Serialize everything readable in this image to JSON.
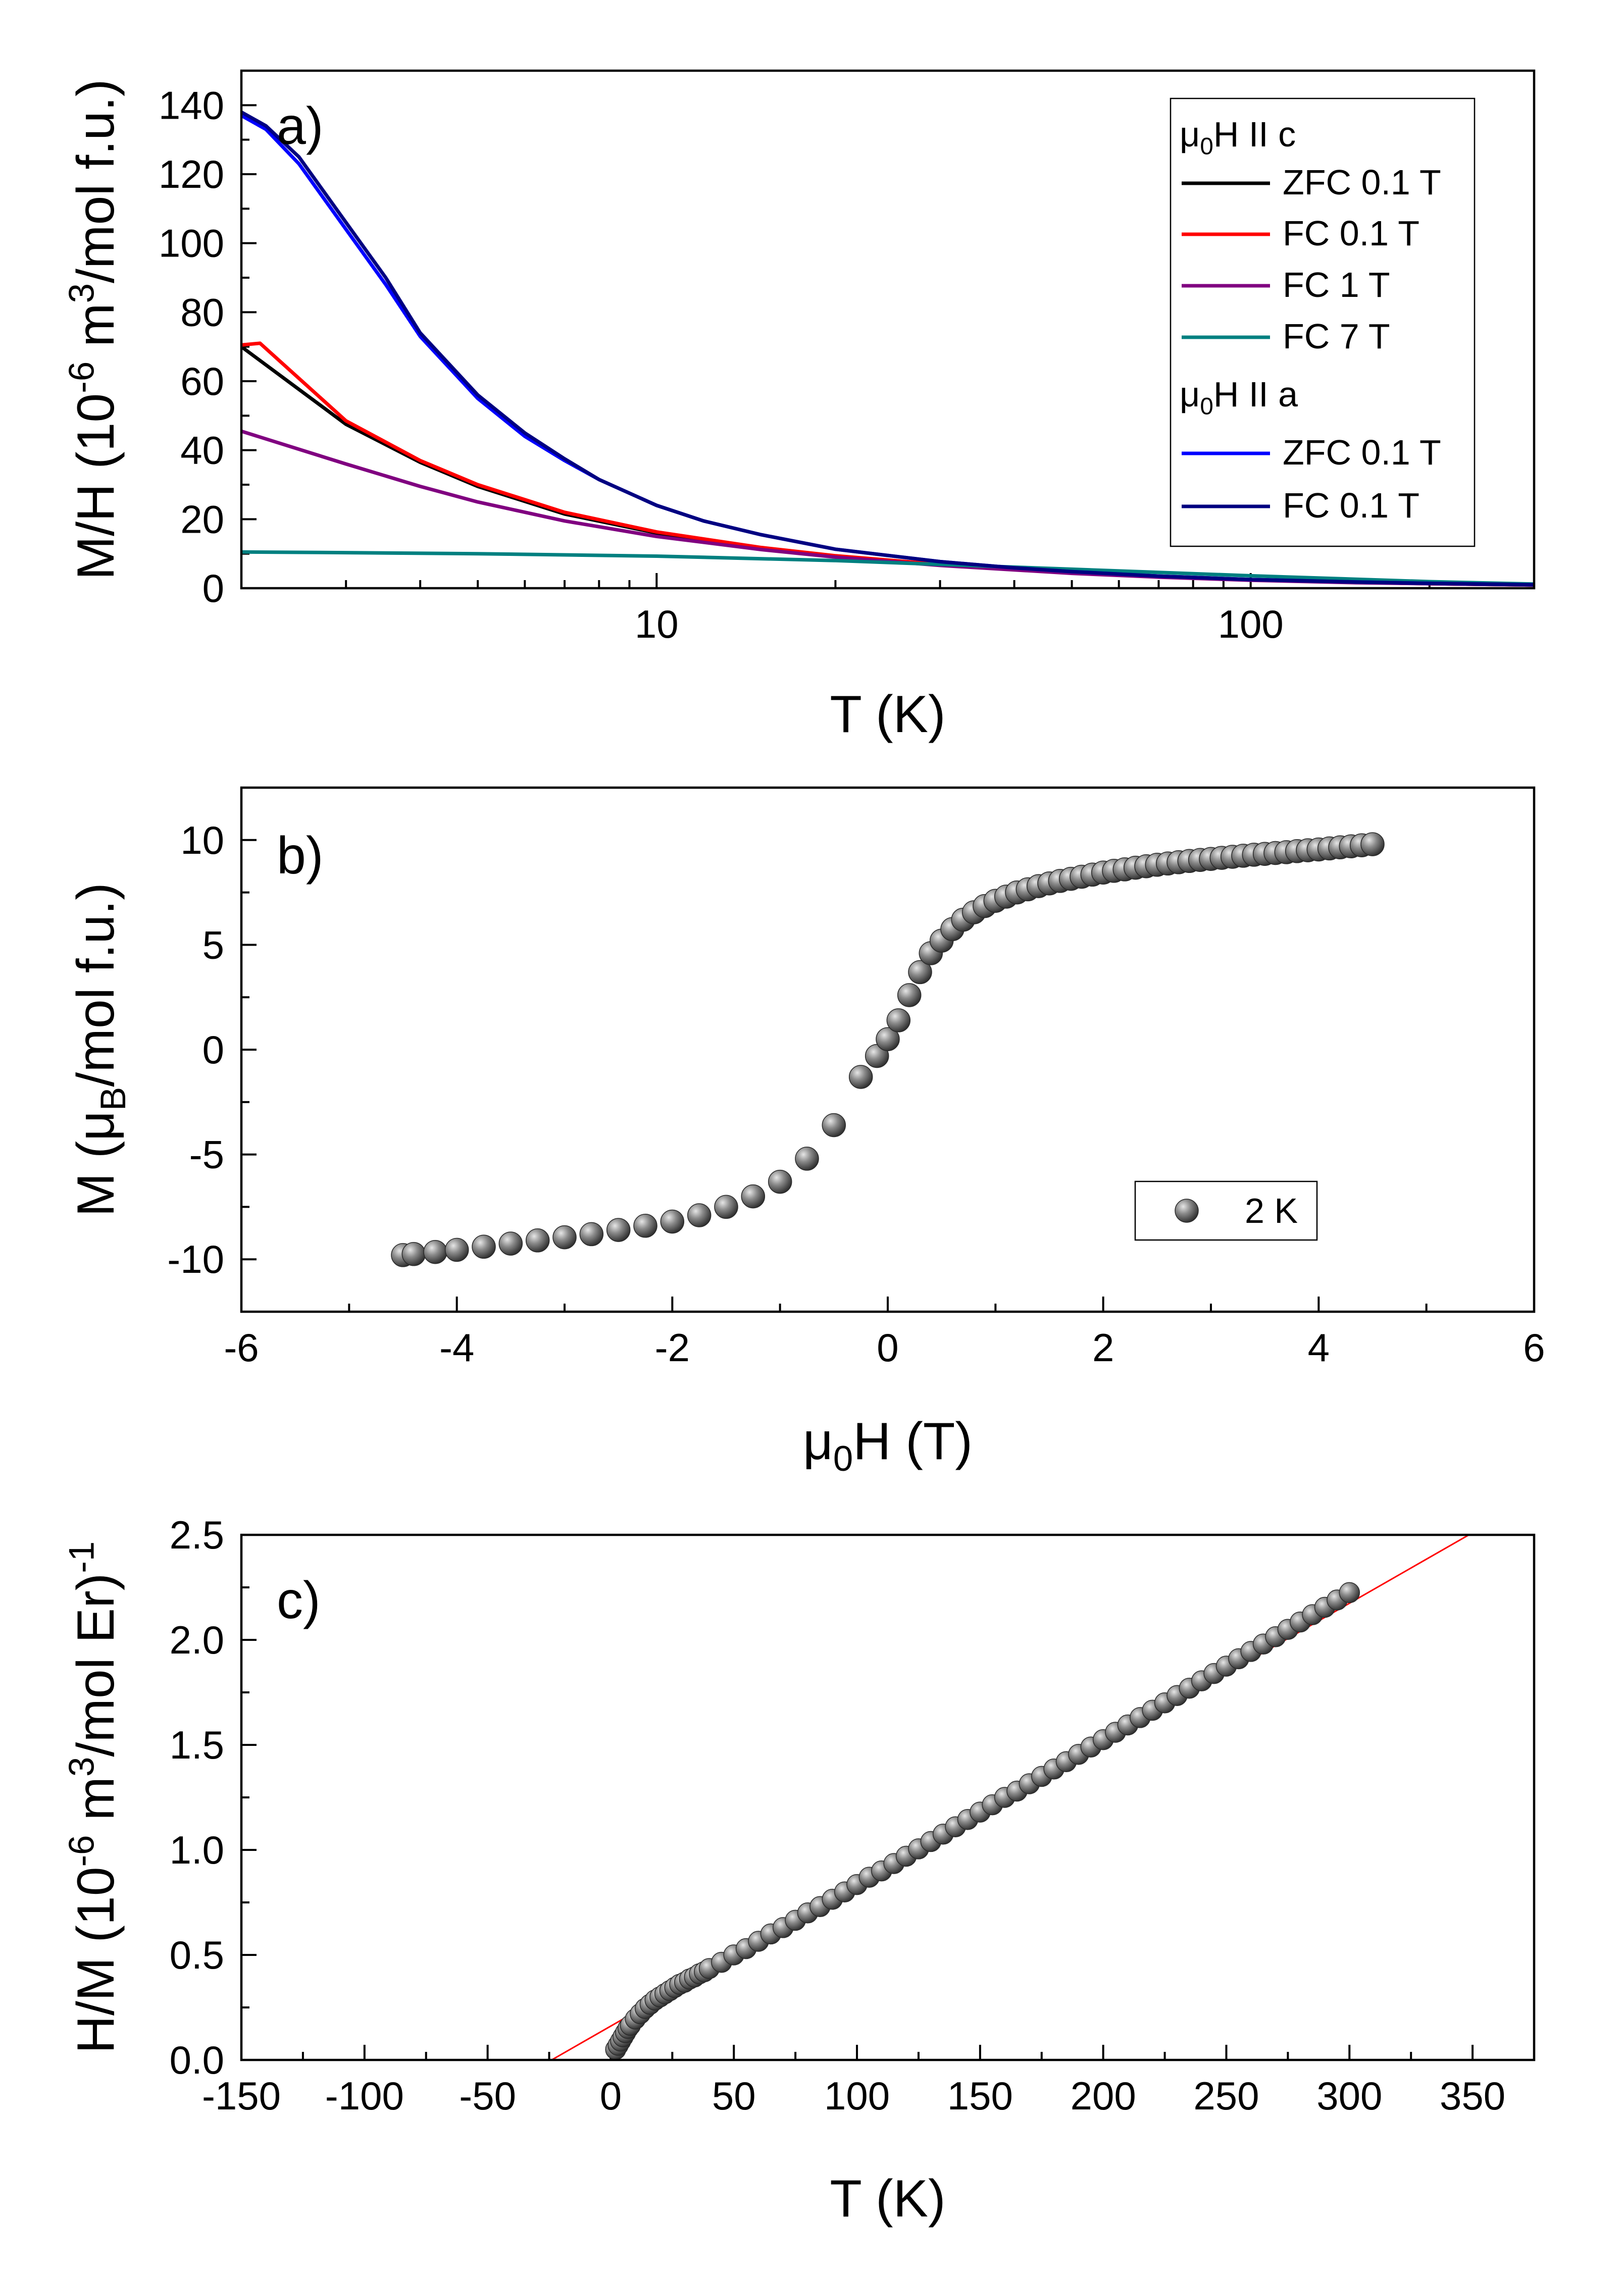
{
  "chart_data": [
    {
      "id": "a",
      "type": "line",
      "panel_label": "a)",
      "xscale": "log",
      "xlim": [
        2,
        300
      ],
      "ylim": [
        0,
        150
      ],
      "xlabel": "T (K)",
      "ylabel": "M/H (10^-6 m^3/mol f.u.)",
      "xlabel_parts": [
        "T (K)"
      ],
      "ylabel_parts": [
        "M/H (10",
        "-6",
        " m",
        "3",
        "/mol f.u.)"
      ],
      "x_ticks": [
        10,
        100
      ],
      "x_tick_labels": [
        "10",
        "100"
      ],
      "y_ticks": [
        0,
        20,
        40,
        60,
        80,
        100,
        120,
        140
      ],
      "y_tick_labels": [
        "0",
        "20",
        "40",
        "60",
        "80",
        "100",
        "120",
        "140"
      ],
      "legend_groups": [
        {
          "heading_parts": [
            "μ",
            "0",
            "H II c"
          ]
        },
        {
          "heading_parts": [
            "μ",
            "0",
            "H II a"
          ]
        }
      ],
      "series": [
        {
          "name": "ZFC 0.1 T",
          "group": 0,
          "color": "#000000",
          "x": [
            2,
            3,
            4,
            5,
            7,
            10,
            15,
            20,
            30,
            50,
            70,
            100,
            150,
            200,
            300
          ],
          "y": [
            70,
            47.5,
            36.5,
            29.5,
            21.5,
            16,
            11.6,
            9.3,
            6.8,
            4.4,
            3.3,
            2.4,
            1.7,
            1.3,
            0.9
          ]
        },
        {
          "name": "FC 0.1 T",
          "group": 0,
          "color": "#ff0000",
          "x": [
            2,
            2.15,
            3,
            4,
            5,
            7,
            10,
            15,
            20,
            30,
            50,
            70,
            100,
            150,
            200,
            300
          ],
          "y": [
            70.5,
            71,
            48.5,
            37,
            30,
            22,
            16.3,
            11.8,
            9.4,
            6.9,
            4.4,
            3.3,
            2.4,
            1.7,
            1.3,
            0.9
          ]
        },
        {
          "name": "FC 1 T",
          "group": 0,
          "color": "#800080",
          "x": [
            2,
            3,
            4,
            5,
            7,
            10,
            15,
            20,
            30,
            50,
            70,
            100,
            150,
            200,
            300
          ],
          "y": [
            45.5,
            36,
            29.5,
            25,
            19.5,
            15,
            11.2,
            9,
            6.6,
            4.3,
            3.2,
            2.3,
            1.6,
            1.3,
            0.9
          ]
        },
        {
          "name": "FC 7 T",
          "group": 0,
          "color": "#008080",
          "x": [
            2,
            3,
            5,
            10,
            20,
            50,
            100,
            200,
            300
          ],
          "y": [
            10.5,
            10.3,
            10,
            9.3,
            8,
            5.5,
            3.6,
            1.9,
            1.2
          ]
        },
        {
          "name": "ZFC 0.1 T",
          "group": 1,
          "color": "#0000ff",
          "x": [
            2,
            2.2,
            2.5,
            3,
            3.5,
            4,
            5,
            6,
            7,
            8,
            10,
            12,
            15,
            20,
            30,
            40,
            50,
            70,
            100,
            150,
            200,
            300
          ],
          "y": [
            137,
            133,
            123,
            104,
            88,
            73,
            55,
            44,
            37,
            31.5,
            24,
            19.5,
            15.5,
            11.3,
            7.7,
            5.9,
            4.8,
            3.5,
            2.5,
            1.8,
            1.4,
            1.0
          ]
        },
        {
          "name": "FC 0.1 T",
          "group": 1,
          "color": "#000080",
          "x": [
            2,
            2.2,
            2.5,
            3,
            3.5,
            4,
            5,
            6,
            7,
            8,
            10,
            12,
            15,
            20,
            30,
            40,
            50,
            70,
            100,
            150,
            200,
            300
          ],
          "y": [
            138,
            134,
            125,
            106,
            90,
            74,
            56,
            45,
            37.5,
            31.5,
            24,
            19.5,
            15.5,
            11.3,
            7.7,
            5.9,
            4.8,
            3.5,
            2.5,
            1.8,
            1.4,
            1.0
          ]
        }
      ]
    },
    {
      "id": "b",
      "type": "scatter",
      "panel_label": "b)",
      "xlim": [
        -6,
        6
      ],
      "ylim": [
        -12.5,
        12.5
      ],
      "xlabel": "μ0H (T)",
      "ylabel": "M (μB/mol f.u.)",
      "xlabel_parts": [
        "μ",
        "0",
        "H (T)"
      ],
      "ylabel_parts": [
        "M (μ",
        "B",
        "/mol f.u.)"
      ],
      "x_ticks": [
        -6,
        -4,
        -2,
        0,
        2,
        4,
        6
      ],
      "x_tick_labels": [
        "-6",
        "-4",
        "-2",
        "0",
        "2",
        "4",
        "6"
      ],
      "y_ticks": [
        -10,
        -5,
        0,
        5,
        10
      ],
      "y_tick_labels": [
        "-10",
        "-5",
        "0",
        "5",
        "10"
      ],
      "series": [
        {
          "name": "2 K",
          "color": "#555555",
          "x": [
            -4.5,
            -4.4,
            -4.2,
            -4.0,
            -3.75,
            -3.5,
            -3.25,
            -3.0,
            -2.75,
            -2.5,
            -2.25,
            -2.0,
            -1.75,
            -1.5,
            -1.25,
            -1.0,
            -0.75,
            -0.5,
            -0.25,
            -0.1,
            0,
            0.1,
            0.2,
            0.3,
            0.4,
            0.5,
            0.6,
            0.7,
            0.8,
            0.9,
            1.0,
            1.1,
            1.2,
            1.3,
            1.4,
            1.5,
            1.6,
            1.7,
            1.8,
            1.9,
            2.0,
            2.1,
            2.2,
            2.3,
            2.4,
            2.5,
            2.6,
            2.7,
            2.8,
            2.9,
            3.0,
            3.1,
            3.2,
            3.3,
            3.4,
            3.5,
            3.6,
            3.7,
            3.8,
            3.9,
            4.0,
            4.1,
            4.2,
            4.3,
            4.4,
            4.5
          ],
          "y": [
            -9.8,
            -9.75,
            -9.65,
            -9.55,
            -9.4,
            -9.25,
            -9.1,
            -8.95,
            -8.8,
            -8.6,
            -8.4,
            -8.2,
            -7.9,
            -7.5,
            -7.0,
            -6.3,
            -5.2,
            -3.6,
            -1.3,
            -0.3,
            0.5,
            1.4,
            2.6,
            3.7,
            4.6,
            5.2,
            5.75,
            6.2,
            6.55,
            6.85,
            7.1,
            7.3,
            7.5,
            7.65,
            7.8,
            7.93,
            8.05,
            8.15,
            8.25,
            8.35,
            8.45,
            8.53,
            8.6,
            8.68,
            8.75,
            8.82,
            8.88,
            8.94,
            9.0,
            9.05,
            9.1,
            9.15,
            9.2,
            9.25,
            9.3,
            9.34,
            9.38,
            9.42,
            9.47,
            9.51,
            9.55,
            9.6,
            9.65,
            9.7,
            9.75,
            9.8
          ]
        }
      ]
    },
    {
      "id": "c",
      "type": "scatter",
      "panel_label": "c)",
      "xlim": [
        -150,
        375
      ],
      "ylim": [
        0,
        2.5
      ],
      "xlabel": "T (K)",
      "ylabel": "H/M (10^-6 m^3/mol Er)^-1",
      "xlabel_parts": [
        "T (K)"
      ],
      "ylabel_parts": [
        "H/M (10",
        "-6",
        " m",
        "3",
        "/mol Er)",
        "-1"
      ],
      "x_ticks": [
        -150,
        -100,
        -50,
        0,
        50,
        100,
        150,
        200,
        250,
        300,
        350
      ],
      "x_tick_labels": [
        "-150",
        "-100",
        "-50",
        "0",
        "50",
        "100",
        "150",
        "200",
        "250",
        "300",
        "350"
      ],
      "y_ticks": [
        0.0,
        0.5,
        1.0,
        1.5,
        2.0,
        2.5
      ],
      "y_tick_labels": [
        "0.0",
        "0.5",
        "1.0",
        "1.5",
        "2.0",
        "2.5"
      ],
      "fit_line": {
        "x": [
          -24,
          350
        ],
        "y": [
          0.0,
          2.51
        ],
        "color": "#ff0000"
      },
      "series": [
        {
          "name": "2 K",
          "color": "#555555",
          "x": [
            2,
            3,
            4,
            5,
            6,
            7,
            8,
            10,
            12,
            14,
            16,
            18,
            20,
            22,
            24,
            26,
            28,
            30,
            32,
            34,
            36,
            38,
            40,
            45,
            50,
            55,
            60,
            65,
            70,
            75,
            80,
            85,
            90,
            95,
            100,
            105,
            110,
            115,
            120,
            125,
            130,
            135,
            140,
            145,
            150,
            155,
            160,
            165,
            170,
            175,
            180,
            185,
            190,
            195,
            200,
            205,
            210,
            215,
            220,
            225,
            230,
            235,
            240,
            245,
            250,
            255,
            260,
            265,
            270,
            275,
            280,
            285,
            290,
            295,
            300
          ],
          "y": [
            0.05,
            0.07,
            0.09,
            0.11,
            0.13,
            0.15,
            0.165,
            0.195,
            0.22,
            0.245,
            0.265,
            0.285,
            0.3,
            0.315,
            0.33,
            0.345,
            0.36,
            0.37,
            0.385,
            0.395,
            0.41,
            0.42,
            0.435,
            0.465,
            0.5,
            0.53,
            0.565,
            0.6,
            0.63,
            0.665,
            0.7,
            0.73,
            0.765,
            0.8,
            0.835,
            0.87,
            0.9,
            0.935,
            0.97,
            1.005,
            1.04,
            1.075,
            1.11,
            1.145,
            1.18,
            1.215,
            1.25,
            1.28,
            1.315,
            1.35,
            1.385,
            1.42,
            1.455,
            1.49,
            1.525,
            1.56,
            1.595,
            1.63,
            1.665,
            1.7,
            1.735,
            1.77,
            1.805,
            1.84,
            1.875,
            1.91,
            1.945,
            1.98,
            2.015,
            2.05,
            2.085,
            2.12,
            2.155,
            2.19,
            2.225
          ]
        }
      ]
    }
  ]
}
